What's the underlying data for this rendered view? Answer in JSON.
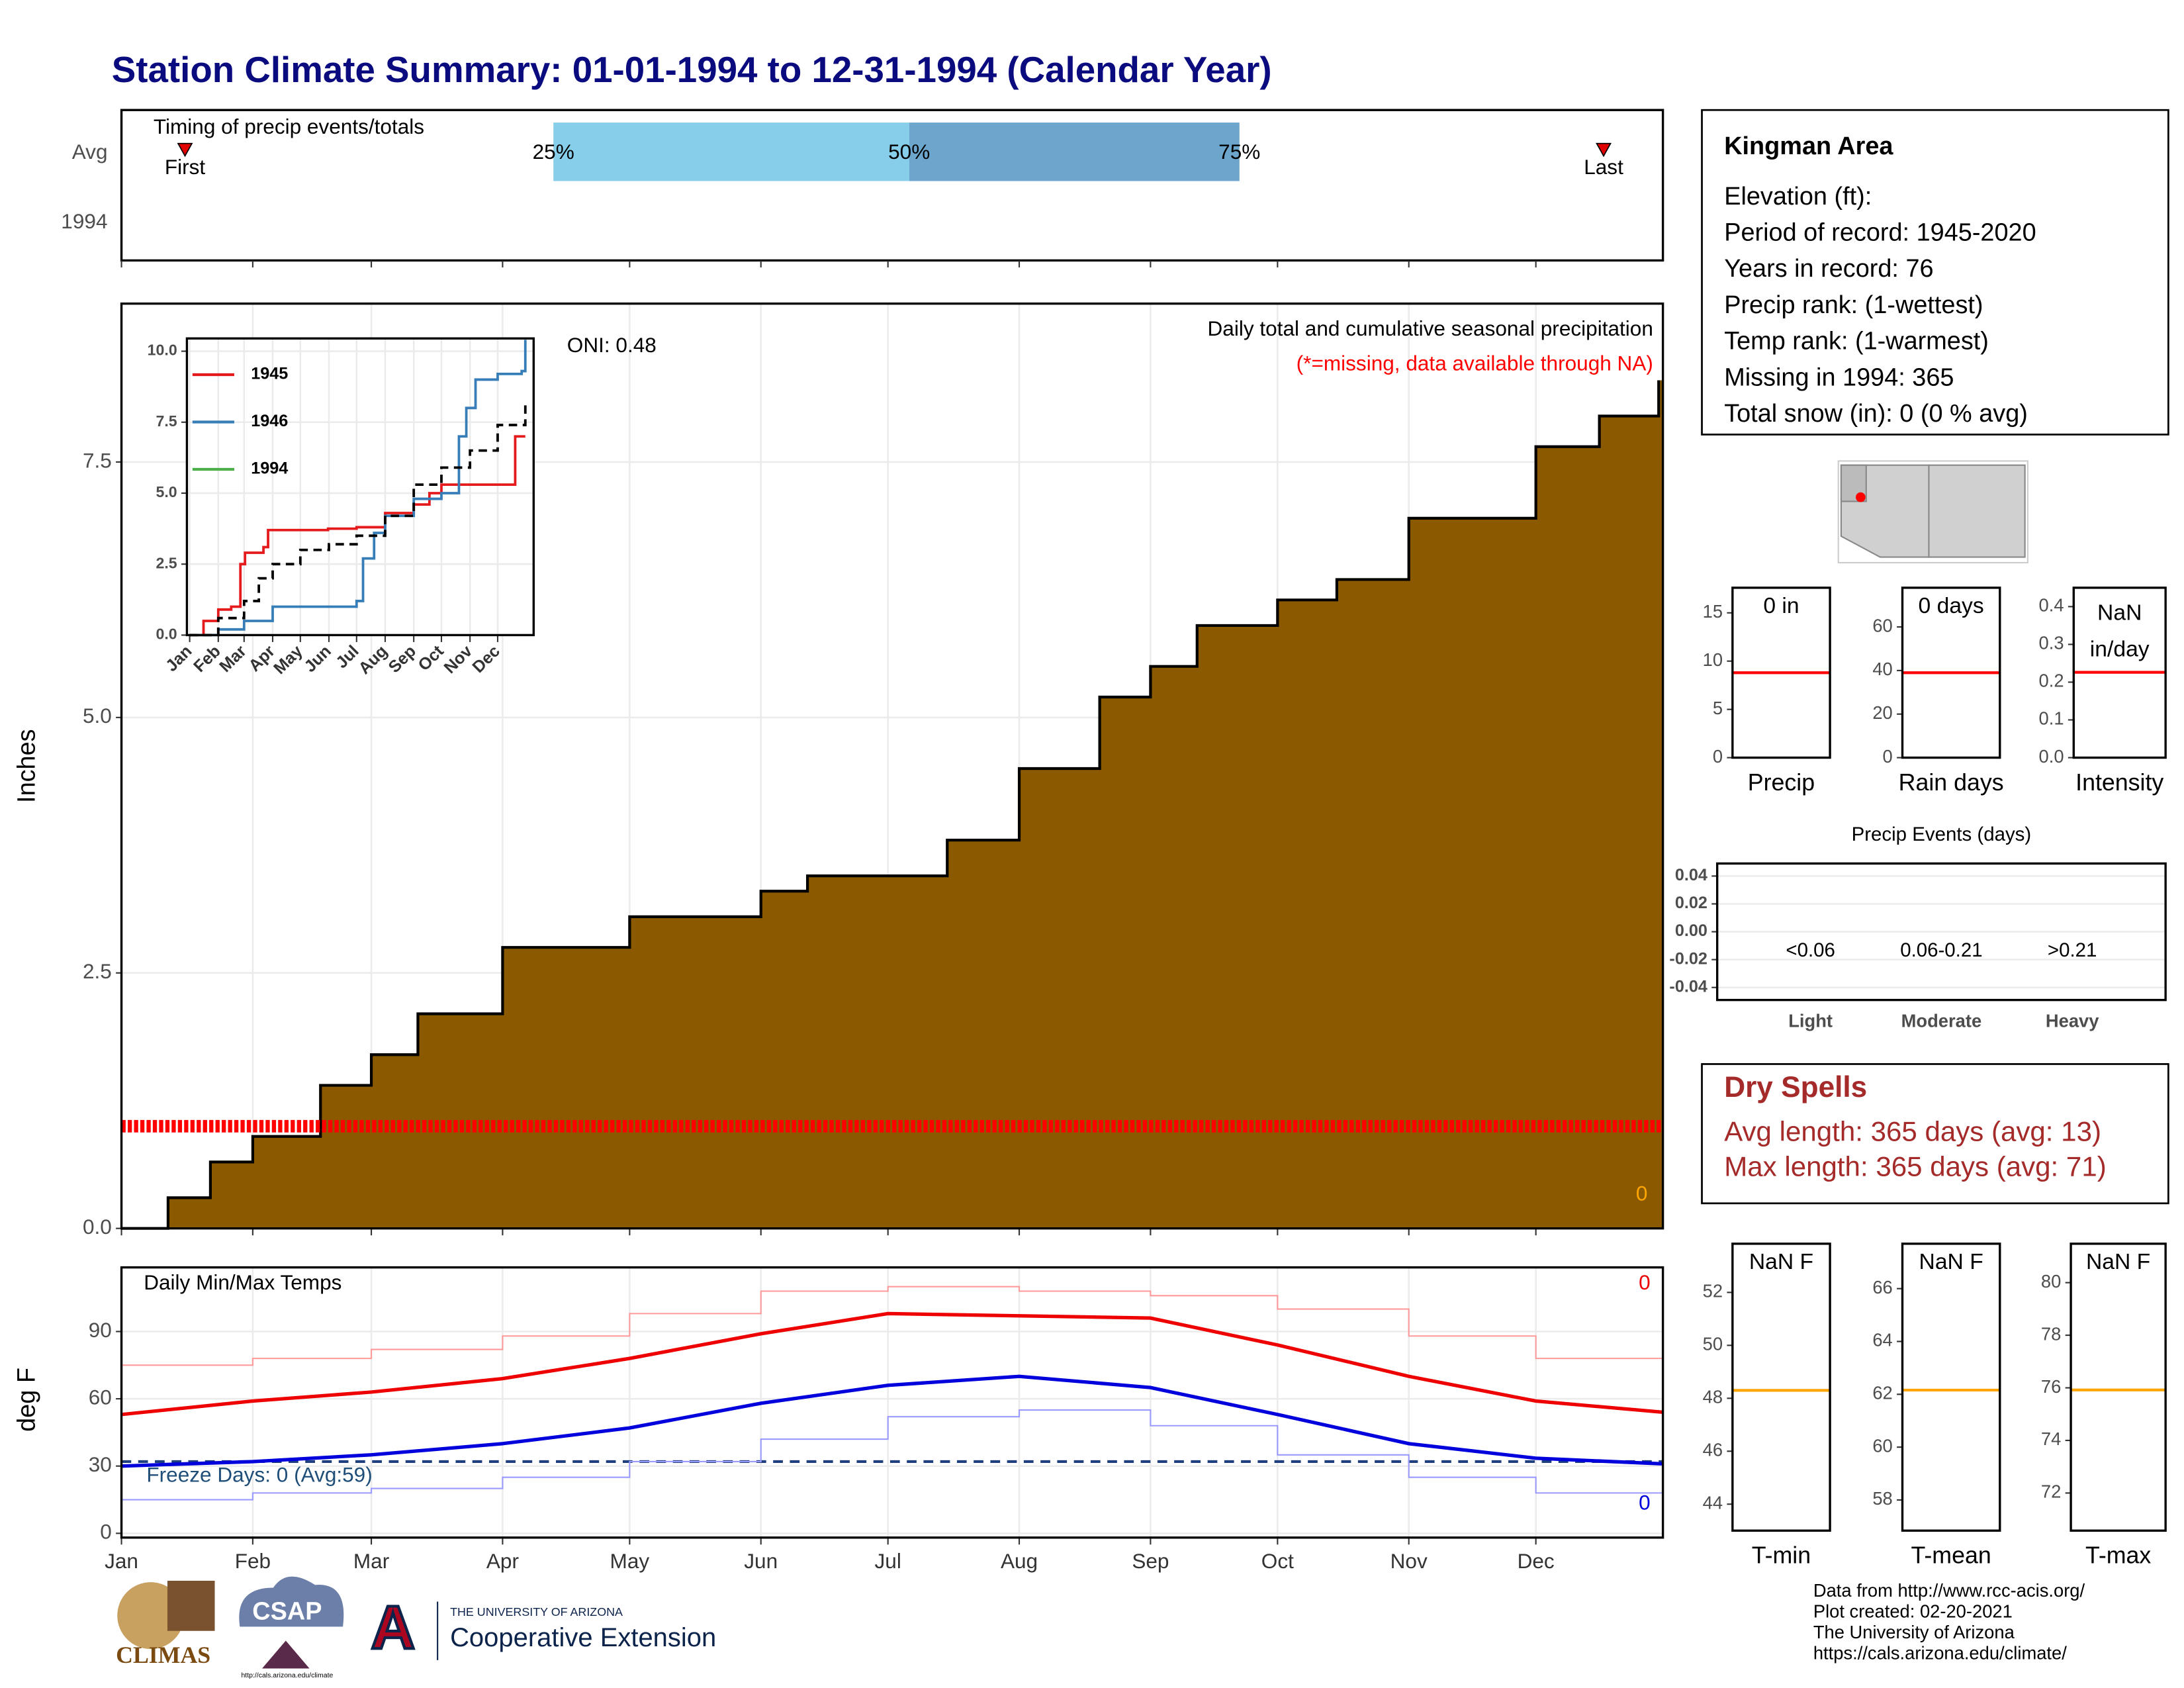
{
  "title": "Station Climate Summary: 01-01-1994 to 12-31-1994 (Calendar Year)",
  "chart_data": [
    {
      "type": "timing",
      "title": "Timing of precip events/totals",
      "categories": [
        "Avg",
        "1994"
      ],
      "xlim": [
        0,
        364
      ],
      "xticks": [
        0,
        31,
        59,
        90,
        120,
        151,
        181,
        212,
        243,
        273,
        304,
        334
      ],
      "first": {
        "label": "First",
        "day": 15
      },
      "last": {
        "label": "Last",
        "day": 350
      },
      "percentiles": {
        "days": [
          102,
          186,
          264
        ],
        "values": [
          25,
          50,
          75
        ],
        "value_labels": [
          "25%",
          "50%",
          "75%"
        ],
        "colors": [
          "#87ceeb",
          "#6ca6cd"
        ]
      },
      "marker_color": "#e00000"
    },
    {
      "type": "area",
      "ylabel": "Inches",
      "grid": true,
      "xlim": [
        0,
        364
      ],
      "ylim": [
        0,
        9.05
      ],
      "xticks": [
        0,
        31,
        59,
        90,
        120,
        151,
        181,
        212,
        243,
        273,
        304,
        334
      ],
      "yticks": [
        {
          "value": 0,
          "label": "0.0"
        },
        {
          "value": 2.5,
          "label": "2.5"
        },
        {
          "value": 5,
          "label": "5.0"
        },
        {
          "value": 7.5,
          "label": "7.5"
        }
      ],
      "color": "#8b5a00",
      "missing_level": 1.0,
      "missing_color": "#ff0000",
      "x": [
        0,
        11,
        21,
        31,
        47,
        59,
        70,
        90,
        120,
        151,
        162,
        181,
        195,
        212,
        231,
        243,
        254,
        273,
        287,
        304,
        334,
        349,
        363
      ],
      "values": [
        0,
        0.3,
        0.65,
        0.9,
        1.4,
        1.7,
        2.1,
        2.75,
        3.05,
        3.3,
        3.45,
        3.45,
        3.8,
        4.5,
        5.2,
        5.5,
        5.9,
        6.15,
        6.35,
        6.95,
        7.65,
        7.95,
        8.3
      ],
      "annotations": [
        {
          "text": "ONI: 0.48",
          "color": "#000"
        },
        {
          "text": "Daily total and cumulative seasonal precipitation",
          "color": "#000"
        },
        {
          "text": "(*=missing, data available through NA)",
          "color": "#ff0000"
        },
        {
          "text": "0",
          "color": "#ffa500"
        }
      ]
    },
    {
      "type": "line",
      "grid": true,
      "step": true,
      "xlim": [
        -3,
        373
      ],
      "ylim": [
        0,
        10.45
      ],
      "xticks": [
        {
          "value": 0,
          "label": "Jan"
        },
        {
          "value": 31,
          "label": "Feb"
        },
        {
          "value": 59,
          "label": "Mar"
        },
        {
          "value": 90,
          "label": "Apr"
        },
        {
          "value": 120,
          "label": "May"
        },
        {
          "value": 151,
          "label": "Jun"
        },
        {
          "value": 181,
          "label": "Jul"
        },
        {
          "value": 212,
          "label": "Aug"
        },
        {
          "value": 243,
          "label": "Sep"
        },
        {
          "value": 273,
          "label": "Oct"
        },
        {
          "value": 304,
          "label": "Nov"
        },
        {
          "value": 334,
          "label": "Dec"
        }
      ],
      "yticks": [
        {
          "value": 0,
          "label": "0.0"
        },
        {
          "value": 2.5,
          "label": "2.5"
        },
        {
          "value": 5,
          "label": "5.0"
        },
        {
          "value": 7.5,
          "label": "7.5"
        },
        {
          "value": 10,
          "label": "10.0"
        }
      ],
      "series": [
        {
          "name": "1945",
          "color": "#e41a1c",
          "x": [
            0,
            15,
            31,
            45,
            55,
            60,
            80,
            85,
            150,
            181,
            212,
            243,
            260,
            273,
            350,
            353,
            364
          ],
          "values": [
            0,
            0.5,
            0.9,
            1.0,
            2.5,
            2.9,
            3.1,
            3.7,
            3.75,
            3.8,
            4.3,
            4.6,
            5.0,
            5.3,
            5.3,
            7.0,
            7.0
          ]
        },
        {
          "name": "1946",
          "color": "#377eb8",
          "x": [
            0,
            31,
            59,
            90,
            181,
            188,
            200,
            212,
            243,
            273,
            288,
            292,
            300,
            310,
            334,
            360,
            364
          ],
          "values": [
            0,
            0.2,
            0.5,
            1.0,
            1.2,
            2.7,
            3.6,
            4.2,
            4.8,
            5.0,
            5.0,
            7.0,
            8.0,
            9.0,
            9.2,
            9.3,
            10.4
          ]
        },
        {
          "name": "1994",
          "color": "#4daf4a",
          "x": [],
          "values": []
        },
        {
          "color": "#000000",
          "dash": true,
          "x": [
            0,
            31,
            59,
            75,
            90,
            120,
            151,
            181,
            212,
            243,
            273,
            304,
            334,
            364
          ],
          "values": [
            0,
            0.6,
            1.2,
            2.0,
            2.5,
            3.0,
            3.2,
            3.5,
            4.2,
            5.3,
            5.9,
            6.5,
            7.4,
            8.1
          ]
        }
      ]
    },
    {
      "type": "gauge",
      "label": [
        "0 in"
      ],
      "xlabel": "Precip",
      "ylim": [
        0,
        17.6
      ],
      "yticks": [
        0,
        5,
        10,
        15
      ],
      "value": 8.8,
      "color": "#ff0000"
    },
    {
      "type": "gauge",
      "label": [
        "0 days"
      ],
      "xlabel": "Rain days",
      "ylim": [
        0,
        78
      ],
      "yticks": [
        0,
        20,
        40,
        60
      ],
      "value": 39,
      "color": "#ff0000"
    },
    {
      "type": "gauge",
      "label": [
        "NaN",
        "in/day"
      ],
      "xlabel": "Intensity",
      "ylim": [
        0,
        0.45
      ],
      "yticks": [
        {
          "value": 0,
          "label": "0.0"
        },
        0.1,
        0.2,
        0.3,
        0.4
      ],
      "value": 0.226,
      "color": "#ff0000"
    },
    {
      "type": "bar",
      "title": "Precip Events (days)",
      "grid": true,
      "categories": [
        "Light",
        "Moderate",
        "Heavy"
      ],
      "thresholds": [
        "<0.06",
        "0.06-0.21",
        ">0.21"
      ],
      "values": [
        0,
        0,
        0
      ],
      "color": "#000000",
      "ylim": [
        -0.049,
        0.049
      ],
      "yticks": [
        0.04,
        0.02,
        {
          "value": 0,
          "label": "0.00"
        },
        -0.02,
        -0.04
      ]
    },
    {
      "type": "line",
      "ylabel": "deg F",
      "grid": true,
      "xlim": [
        0,
        364
      ],
      "ylim": [
        -1.9,
        118.6
      ],
      "xticks": [
        {
          "value": 0,
          "label": "Jan"
        },
        {
          "value": 31,
          "label": "Feb"
        },
        {
          "value": 59,
          "label": "Mar"
        },
        {
          "value": 90,
          "label": "Apr"
        },
        {
          "value": 120,
          "label": "May"
        },
        {
          "value": 151,
          "label": "Jun"
        },
        {
          "value": 181,
          "label": "Jul"
        },
        {
          "value": 212,
          "label": "Aug"
        },
        {
          "value": 243,
          "label": "Sep"
        },
        {
          "value": 273,
          "label": "Oct"
        },
        {
          "value": 304,
          "label": "Nov"
        },
        {
          "value": 334,
          "label": "Dec"
        }
      ],
      "yticks": [
        0,
        30,
        60,
        90
      ],
      "freeze_level": 32,
      "freeze_color": "#1f3f7f",
      "series": [
        {
          "color": "#ff9a9a",
          "width": 1,
          "step": true,
          "x": [
            0,
            31,
            59,
            90,
            120,
            151,
            181,
            212,
            243,
            273,
            304,
            334,
            364
          ],
          "values": [
            75,
            78,
            82,
            88,
            98,
            108,
            110,
            108,
            106,
            100,
            88,
            78,
            72
          ]
        },
        {
          "color": "#9a9aff",
          "width": 1,
          "step": true,
          "x": [
            0,
            31,
            59,
            90,
            120,
            151,
            181,
            212,
            243,
            273,
            304,
            334,
            364
          ],
          "values": [
            15,
            18,
            20,
            25,
            32,
            42,
            52,
            55,
            48,
            35,
            25,
            18,
            15
          ]
        },
        {
          "color": "#ee0000",
          "width": 2.5,
          "x": [
            0,
            31,
            59,
            90,
            120,
            151,
            181,
            212,
            243,
            273,
            304,
            334,
            364
          ],
          "values": [
            53,
            59,
            63,
            69,
            78,
            89,
            98,
            97,
            96,
            84,
            70,
            59,
            54
          ]
        },
        {
          "color": "#0000dd",
          "width": 2.5,
          "x": [
            0,
            31,
            59,
            90,
            120,
            151,
            181,
            212,
            243,
            273,
            304,
            334,
            364
          ],
          "values": [
            30,
            32,
            35,
            40,
            47,
            58,
            66,
            70,
            65,
            53,
            40,
            33.5,
            31
          ]
        }
      ],
      "annotations": [
        {
          "text": "Daily Min/Max Temps",
          "color": "#000"
        },
        {
          "text": "0",
          "color": "#ee0000"
        },
        {
          "text": "Freeze Days: 0 (Avg:59)",
          "color": "#1f4e79"
        },
        {
          "text": "0",
          "color": "#0000dd"
        }
      ]
    },
    {
      "type": "gauge",
      "label": [
        "NaN F"
      ],
      "xlabel": "T-min",
      "ylim": [
        43.0,
        53.84
      ],
      "yticks": [
        44,
        46,
        48,
        50,
        52
      ],
      "value": 48.3,
      "color": "#ffa500"
    },
    {
      "type": "gauge",
      "label": [
        "NaN F"
      ],
      "xlabel": "T-mean",
      "ylim": [
        56.84,
        67.7
      ],
      "yticks": [
        58,
        60,
        62,
        64,
        66
      ],
      "value": 62.16,
      "color": "#ffa500"
    },
    {
      "type": "gauge",
      "label": [
        "NaN F"
      ],
      "xlabel": "T-max",
      "ylim": [
        70.57,
        81.48
      ],
      "yticks": [
        72,
        74,
        76,
        78,
        80
      ],
      "value": 75.92,
      "color": "#ffa500"
    }
  ],
  "info": {
    "title": "Kingman Area",
    "lines": [
      "Elevation (ft):",
      "Period of record: 1945-2020",
      "Years in record: 76",
      "Precip rank:  (1-wettest)",
      "Temp rank:  (1-warmest)",
      "Missing in 1994: 365",
      "Total snow (in): 0 (0 % avg)"
    ]
  },
  "dry_spells": {
    "title": "Dry Spells",
    "lines": [
      "Avg length: 365 days (avg: 13)",
      "Max length: 365 days (avg: 71)"
    ]
  },
  "footer": [
    "Data from http://www.rcc-acis.org/",
    "Plot created: 02-20-2021",
    "The University of Arizona",
    "https://cals.arizona.edu/climate/"
  ],
  "logos": {
    "climas": "CLIMAS",
    "csap": "CSAP",
    "csap_url": "http://cals.arizona.edu/climate",
    "university": "THE UNIVERSITY OF ARIZONA",
    "extension": "Cooperative Extension"
  }
}
